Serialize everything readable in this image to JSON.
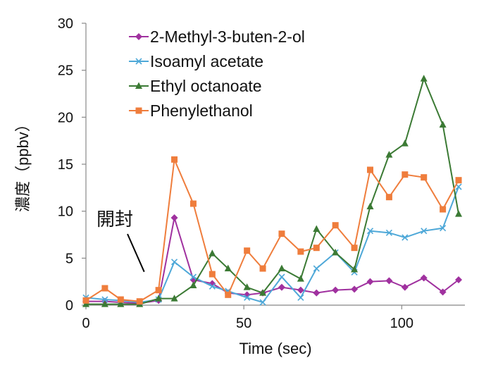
{
  "chart_data": {
    "type": "line",
    "title": "",
    "xlabel": "Time (sec)",
    "ylabel": "濃度（ppbv）",
    "xlim": [
      0,
      120
    ],
    "ylim": [
      0,
      30
    ],
    "x_ticks": [
      0,
      50,
      100
    ],
    "y_ticks": [
      0,
      5,
      10,
      15,
      20,
      25,
      30
    ],
    "grid": false,
    "legend_position": "top-left",
    "annotation": {
      "text": "開封",
      "arrow_to": [
        18,
        1
      ]
    },
    "x": [
      0,
      6,
      11,
      17,
      23,
      28,
      34,
      40,
      45,
      51,
      56,
      62,
      68,
      73,
      79,
      85,
      90,
      96,
      101,
      107,
      113,
      118
    ],
    "series": [
      {
        "name": "2-Methyl-3-buten-2-ol",
        "color": "#a0319f",
        "marker": "diamond",
        "values": [
          0.4,
          0.4,
          0.3,
          0.2,
          0.5,
          9.3,
          2.7,
          2.3,
          1.3,
          1.1,
          1.3,
          1.9,
          1.6,
          1.3,
          1.6,
          1.7,
          2.5,
          2.6,
          1.9,
          2.9,
          1.4,
          2.7
        ]
      },
      {
        "name": "Isoamyl acetate",
        "color": "#4ea8d8",
        "marker": "x",
        "values": [
          0.8,
          0.6,
          0.5,
          0.3,
          0.6,
          4.6,
          3.0,
          2.0,
          1.5,
          0.8,
          0.3,
          3.0,
          0.8,
          3.9,
          5.6,
          3.5,
          7.9,
          7.7,
          7.2,
          7.9,
          8.2,
          12.6
        ]
      },
      {
        "name": "Ethyl octanoate",
        "color": "#3b7a34",
        "marker": "triangle",
        "values": [
          0.1,
          0.1,
          0.1,
          0.1,
          0.7,
          0.7,
          2.1,
          5.5,
          3.9,
          1.9,
          1.3,
          3.9,
          2.8,
          8.1,
          5.6,
          3.8,
          10.5,
          16.0,
          17.2,
          24.1,
          19.2,
          9.7
        ]
      },
      {
        "name": "Phenylethanol",
        "color": "#ef7d3c",
        "marker": "square",
        "values": [
          0.5,
          1.8,
          0.6,
          0.4,
          1.6,
          15.5,
          10.8,
          3.3,
          1.1,
          5.8,
          3.9,
          7.6,
          5.7,
          6.1,
          8.5,
          6.1,
          14.4,
          11.5,
          13.9,
          13.6,
          10.2,
          13.3
        ]
      }
    ]
  }
}
